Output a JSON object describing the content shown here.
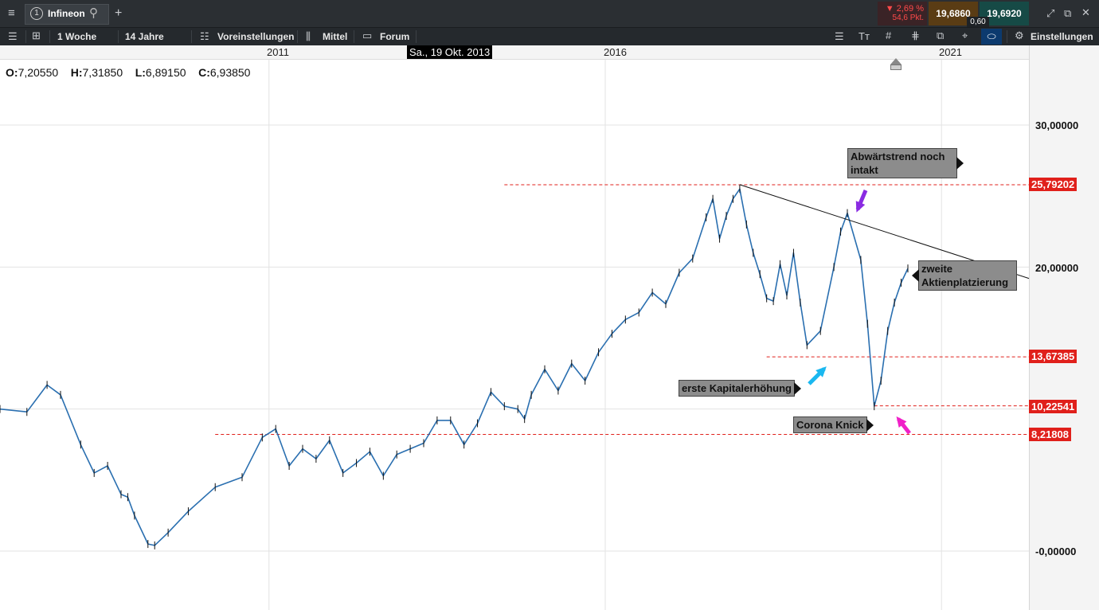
{
  "header": {
    "menu_icon": "hamburger-icon",
    "tab_number": "1",
    "instrument": "Infineon",
    "change_pct": "▼ 2,69 %",
    "change_pts": "54,6 Pkt.",
    "bid": "19,6860",
    "ask": "19,6920",
    "spread": "0,60",
    "colors": {
      "bid_bg": "#5a3c14",
      "ask_bg": "#164a46",
      "change_bg": "#3a2326",
      "change_text": "#ff4a4a"
    }
  },
  "toolbar": {
    "interval": "1 Woche",
    "range": "14 Jahre",
    "presets": "Voreinstellungen",
    "mode": "Mittel",
    "forum": "Forum",
    "settings": "Einstellungen"
  },
  "chart_data": {
    "type": "line",
    "title": "",
    "x_ticks": [
      "2011",
      "2016",
      "2021"
    ],
    "cursor_date": "Sa., 19 Okt. 2013",
    "ohlc": {
      "o_label": "O:",
      "o": "7,20550",
      "h_label": "H:",
      "h": "7,31850",
      "l_label": "L:",
      "l": "6,89150",
      "c_label": "C:",
      "c": "6,93850"
    },
    "y_ticks": [
      "30,00000",
      "20,00000",
      "-0,00000"
    ],
    "y_tick_values": [
      30,
      20,
      0
    ],
    "ylim": [
      -2.5,
      33.5
    ],
    "xlim": [
      2007.0,
      2022.3
    ],
    "series": [
      {
        "color": "#2a6fb0",
        "x": [
          2007.0,
          2007.4,
          2007.7,
          2007.9,
          2008.2,
          2008.4,
          2008.6,
          2008.8,
          2008.9,
          2009.0,
          2009.2,
          2009.3,
          2009.5,
          2009.8,
          2010.2,
          2010.6,
          2010.9,
          2011.1,
          2011.3,
          2011.5,
          2011.7,
          2011.9,
          2012.1,
          2012.3,
          2012.5,
          2012.7,
          2012.9,
          2013.1,
          2013.3,
          2013.5,
          2013.7,
          2013.9,
          2014.1,
          2014.3,
          2014.5,
          2014.7,
          2014.8,
          2014.9,
          2015.1,
          2015.3,
          2015.5,
          2015.7,
          2015.9,
          2016.1,
          2016.3,
          2016.5,
          2016.7,
          2016.9,
          2017.1,
          2017.3,
          2017.5,
          2017.6,
          2017.7,
          2017.8,
          2017.9,
          2018.0,
          2018.1,
          2018.2,
          2018.3,
          2018.4,
          2018.5,
          2018.6,
          2018.7,
          2018.8,
          2018.9,
          2019.0,
          2019.2,
          2019.4,
          2019.5,
          2019.6,
          2019.8,
          2019.9,
          2020.0,
          2020.1,
          2020.2,
          2020.3,
          2020.4,
          2020.5
        ],
        "y": [
          10.0,
          9.8,
          11.7,
          11.0,
          7.5,
          5.5,
          6.0,
          4.0,
          3.8,
          2.5,
          0.5,
          0.4,
          1.3,
          2.8,
          4.5,
          5.2,
          8.0,
          8.6,
          6.0,
          7.2,
          6.5,
          7.8,
          5.5,
          6.2,
          7.0,
          5.3,
          6.8,
          7.2,
          7.6,
          9.2,
          9.2,
          7.5,
          9.0,
          11.2,
          10.2,
          10.0,
          9.3,
          11.0,
          12.8,
          11.3,
          13.2,
          12.0,
          14.0,
          15.3,
          16.3,
          16.8,
          18.2,
          17.4,
          19.6,
          20.6,
          23.5,
          24.8,
          22.0,
          23.6,
          24.8,
          25.5,
          23.0,
          21.0,
          19.5,
          17.8,
          17.6,
          20.2,
          18.0,
          21.0,
          17.5,
          14.5,
          15.5,
          20.0,
          22.5,
          23.8,
          20.5,
          16.0,
          10.2,
          12.0,
          15.5,
          17.5,
          18.9,
          19.9
        ]
      }
    ],
    "levels": [
      {
        "label": "25,79202",
        "value": 25.79202,
        "x_from": 2014.5
      },
      {
        "label": "13,67385",
        "value": 13.67385,
        "x_from": 2018.4
      },
      {
        "label": "10,22541",
        "value": 10.22541,
        "x_from": 2020.0
      },
      {
        "label": "8,21808",
        "value": 8.21808,
        "x_from": 2010.2
      }
    ],
    "trendline": {
      "x": [
        2018.0,
        2022.3
      ],
      "y": [
        25.8,
        19.2
      ]
    },
    "annotations": [
      {
        "text_line1": "Abwärtstrend noch",
        "text_line2": "intakt",
        "pointer": "right"
      },
      {
        "text_line1": "zweite",
        "text_line2": "Aktienplatzierung",
        "pointer": "left"
      },
      {
        "text_line1": "erste Kapitalerhöhung",
        "text_line2": "",
        "pointer": "right"
      },
      {
        "text_line1": "Corona Knick",
        "text_line2": "",
        "pointer": "right"
      }
    ],
    "arrows": [
      {
        "color": "#8a2be2",
        "icon": "arrow-down-left-icon"
      },
      {
        "color": "#1ab8f0",
        "icon": "arrow-up-right-icon"
      },
      {
        "color": "#f020c8",
        "icon": "arrow-up-left-icon"
      }
    ],
    "grid": true
  }
}
